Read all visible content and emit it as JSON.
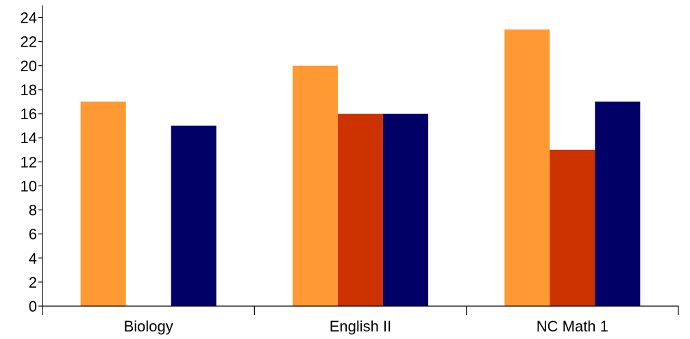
{
  "chart_data": {
    "type": "bar",
    "title": "",
    "xlabel": "",
    "ylabel": "",
    "categories": [
      "Biology",
      "English II",
      "NC Math 1"
    ],
    "series": [
      {
        "color": "#FF9933",
        "values": [
          17,
          20,
          23
        ]
      },
      {
        "color": "#CC3300",
        "values": [
          null,
          16,
          13
        ]
      },
      {
        "color": "#000066",
        "values": [
          15,
          16,
          17
        ]
      }
    ],
    "ylim": [
      0,
      25
    ],
    "yticks": [
      0,
      2,
      4,
      6,
      8,
      10,
      12,
      14,
      16,
      18,
      20,
      22,
      24
    ],
    "grid": false,
    "legend": "none"
  }
}
